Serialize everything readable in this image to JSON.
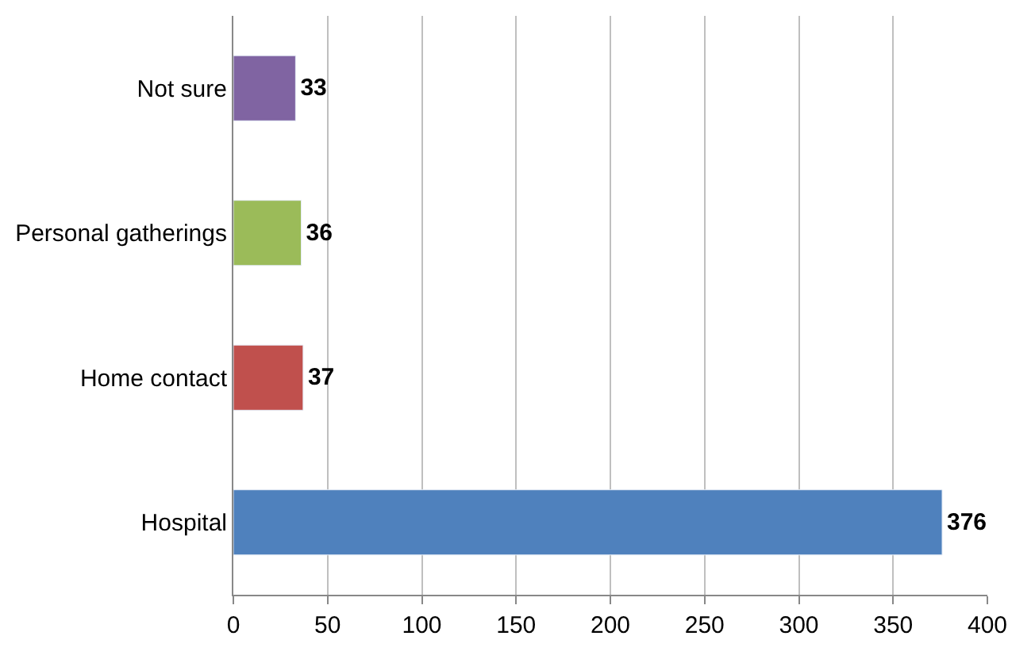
{
  "chart_data": {
    "type": "bar",
    "orientation": "horizontal",
    "categories": [
      "Not sure",
      "Personal gatherings",
      "Home contact",
      "Hospital"
    ],
    "values": [
      33,
      36,
      37,
      376
    ],
    "colors": [
      "#8064a2",
      "#9bbb59",
      "#c0504d",
      "#4f81bd"
    ],
    "xlim": [
      0,
      400
    ],
    "xticks": [
      0,
      50,
      100,
      150,
      200,
      250,
      300,
      350,
      400
    ],
    "grid": "x",
    "data_labels": true,
    "legend": false
  }
}
